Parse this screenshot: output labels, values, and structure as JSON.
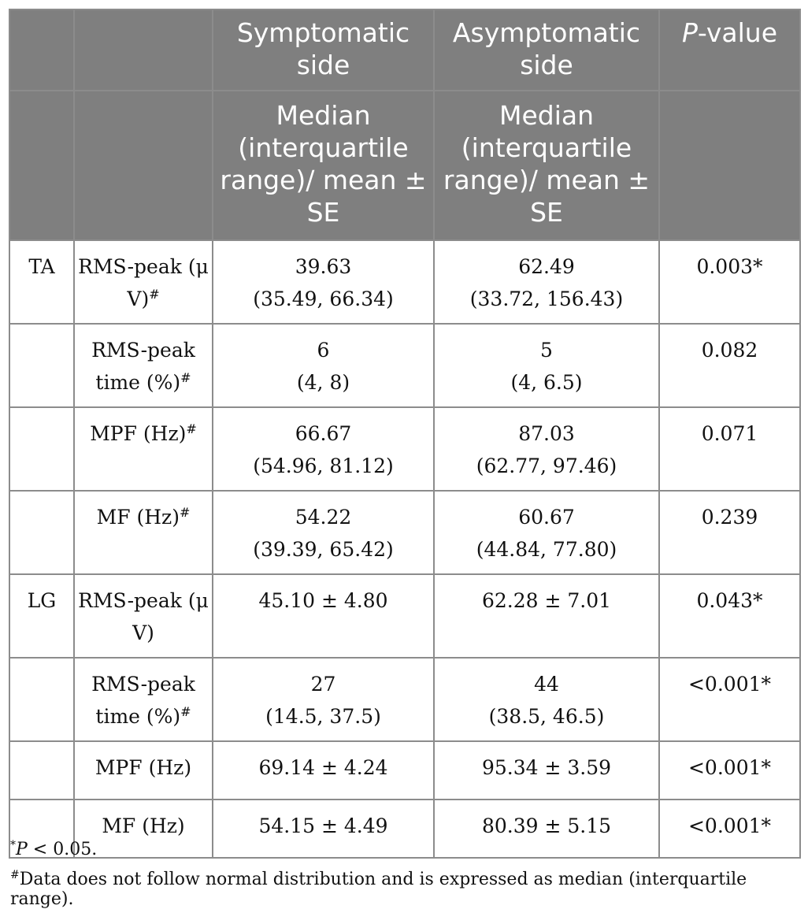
{
  "table": {
    "header_row1": {
      "col1": "",
      "col2": "",
      "col3": "Symptomatic side",
      "col4": "Asymptomatic side",
      "col5_italic": "P",
      "col5_rest": "-value"
    },
    "header_row2": {
      "col3": "Median (interquartile range)/ mean ± SE",
      "col4": "Median (interquartile range)/ mean ± SE",
      "col5": ""
    },
    "rows": [
      {
        "group": "TA",
        "measure": "RMS-peak (μ V)",
        "mark": "#",
        "sym1": "39.63",
        "sym2": "(35.49, 66.34)",
        "asym1": "62.49",
        "asym2": "(33.72, 156.43)",
        "p": "0.003*"
      },
      {
        "group": "",
        "measure": "RMS-peak time (%)",
        "mark": "#",
        "sym1": "6",
        "sym2": "(4, 8)",
        "asym1": "5",
        "asym2": "(4, 6.5)",
        "p": "0.082"
      },
      {
        "group": "",
        "measure": "MPF (Hz)",
        "mark": "#",
        "sym1": "66.67",
        "sym2": "(54.96, 81.12)",
        "asym1": "87.03",
        "asym2": "(62.77, 97.46)",
        "p": "0.071"
      },
      {
        "group": "",
        "measure": "MF (Hz)",
        "mark": "#",
        "sym1": "54.22",
        "sym2": "(39.39, 65.42)",
        "asym1": "60.67",
        "asym2": "(44.84, 77.80)",
        "p": "0.239"
      },
      {
        "group": "LG",
        "measure": "RMS-peak (μ V)",
        "mark": "",
        "sym1": "45.10 ± 4.80",
        "sym2": "",
        "asym1": "62.28 ± 7.01",
        "asym2": "",
        "p": "0.043*"
      },
      {
        "group": "",
        "measure": "RMS-peak time (%)",
        "mark": "#",
        "sym1": "27",
        "sym2": "(14.5, 37.5)",
        "asym1": "44",
        "asym2": "(38.5, 46.5)",
        "p": "<0.001*"
      },
      {
        "group": "",
        "measure": "MPF (Hz)",
        "mark": "",
        "sym1": "69.14 ± 4.24",
        "sym2": "",
        "asym1": "95.34 ± 3.59",
        "asym2": "",
        "p": "<0.001*"
      },
      {
        "group": "",
        "measure": "MF (Hz)",
        "mark": "",
        "sym1": "54.15 ± 4.49",
        "sym2": "",
        "asym1": "80.39 ± 5.15",
        "asym2": "",
        "p": "<0.001*"
      }
    ]
  },
  "footnotes": {
    "note1_mark": "*",
    "note1_italic": "P",
    "note1_text": " < 0.05.",
    "note2_mark": "#",
    "note2_text": "Data does not follow normal distribution and is expressed as median (interquartile range)."
  }
}
